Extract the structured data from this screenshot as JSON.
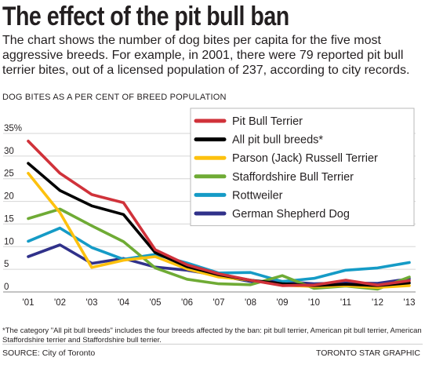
{
  "title": "The effect of the pit bull ban",
  "intro": "The chart shows the number of dog bites per capita for the five most aggressive breeds. For example, in 2001, there were 79 reported pit bull terrier bites, out of a licensed population of 237, according to city records.",
  "footnote": "*The category \"All pit bull breeds\" includes the four breeds affected by the ban: pit bull terrier, American pit bull terrier, American Staffordshire terrier and Staffordshire bull terrier.",
  "source": "SOURCE: City of Toronto",
  "credit": "TORONTO STAR GRAPHIC",
  "chart_data": {
    "type": "line",
    "ylabel": "DOG BITES AS A PER CENT OF BREED POPULATION",
    "xlabel": "",
    "x": [
      "'01",
      "'02",
      "'03",
      "'04",
      "'05",
      "'06",
      "'07",
      "'08",
      "'09",
      "'10",
      "'11",
      "'12",
      "'13"
    ],
    "y_ticks": [
      "0",
      "5",
      "10",
      "15",
      "20",
      "25",
      "30",
      "35%"
    ],
    "ylim": [
      0,
      35
    ],
    "grid": "horizontal",
    "legend_position": "top-right",
    "series": [
      {
        "name": "Pit Bull Terrier",
        "color": "#d0323a",
        "values": [
          33.3,
          26.2,
          21.5,
          19.7,
          9.3,
          6.0,
          4.0,
          2.6,
          1.4,
          1.5,
          2.6,
          1.5,
          2.5
        ]
      },
      {
        "name": "All pit bull breeds*",
        "color": "#000000",
        "values": [
          28.4,
          22.4,
          19.0,
          17.1,
          8.7,
          5.6,
          3.8,
          2.6,
          1.8,
          1.4,
          1.7,
          1.4,
          2.0
        ]
      },
      {
        "name": "Parson (Jack) Russell Terrier",
        "color": "#fdc10e",
        "values": [
          26.2,
          17.5,
          5.4,
          7.0,
          7.8,
          5.1,
          3.3,
          2.6,
          1.5,
          1.2,
          1.4,
          1.0,
          1.4
        ]
      },
      {
        "name": "Staffordshire Bull Terrier",
        "color": "#6fab35",
        "values": [
          16.2,
          18.3,
          14.6,
          11.1,
          5.3,
          2.8,
          1.8,
          1.6,
          3.6,
          0.8,
          1.3,
          0.6,
          3.3
        ]
      },
      {
        "name": "Rottweiler",
        "color": "#159bc6",
        "values": [
          11.2,
          14.1,
          9.8,
          7.2,
          8.3,
          6.4,
          4.2,
          4.3,
          2.3,
          3.0,
          4.8,
          5.3,
          6.5
        ]
      },
      {
        "name": "German Shepherd Dog",
        "color": "#30318a",
        "values": [
          7.8,
          10.4,
          6.3,
          7.4,
          5.5,
          4.8,
          3.6,
          2.3,
          2.3,
          1.8,
          2.0,
          1.9,
          2.9
        ]
      }
    ]
  }
}
